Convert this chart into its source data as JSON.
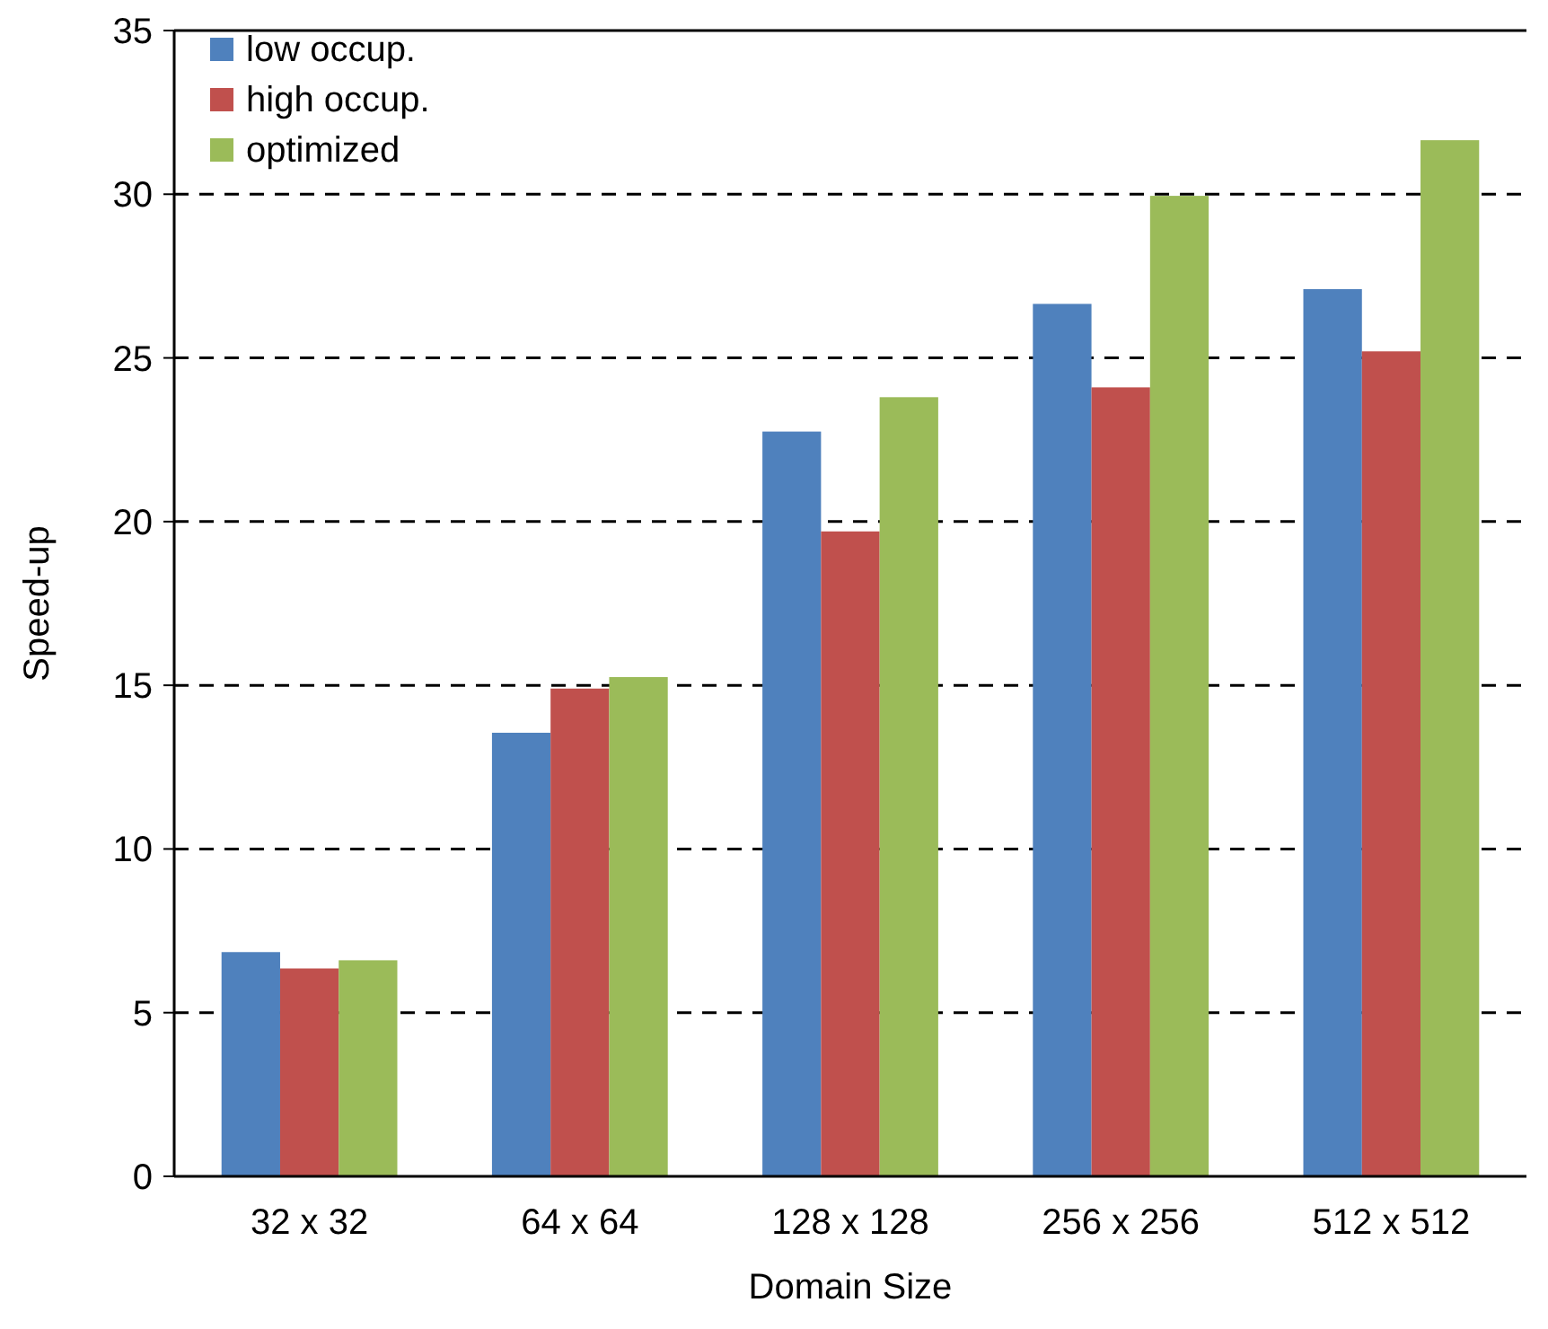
{
  "chart_data": {
    "type": "bar",
    "xlabel": "Domain Size",
    "ylabel": "Speed-up",
    "categories": [
      "32 x 32",
      "64 x 64",
      "128 x 128",
      "256 x 256",
      "512 x 512"
    ],
    "series": [
      {
        "name": "low occup.",
        "color": "#4f81bd",
        "values": [
          6.85,
          13.55,
          22.75,
          26.65,
          27.1
        ]
      },
      {
        "name": "high occup.",
        "color": "#c0504d",
        "values": [
          6.35,
          14.9,
          19.7,
          24.1,
          25.2
        ]
      },
      {
        "name": "optimized",
        "color": "#9bbb59",
        "values": [
          6.6,
          15.25,
          23.8,
          29.95,
          31.65
        ]
      }
    ],
    "ylim": [
      0,
      35
    ],
    "yticks": [
      0,
      5,
      10,
      15,
      20,
      25,
      30,
      35
    ],
    "grid": "y",
    "line_style": "dashed",
    "legend": "top left"
  }
}
